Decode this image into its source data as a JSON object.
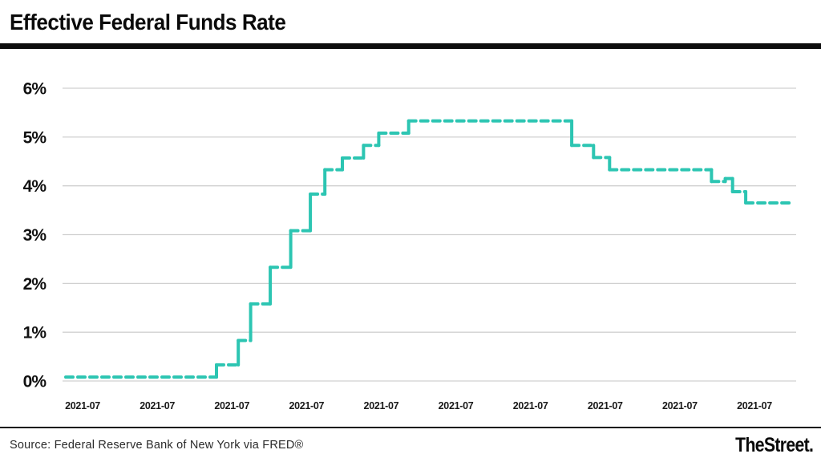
{
  "header": {
    "title": "Effective Federal Funds Rate"
  },
  "chart_data": {
    "type": "line",
    "subtype": "step",
    "title": "Effective Federal Funds Rate",
    "xlabel": "",
    "ylabel": "",
    "unit": "percent",
    "ylim": [
      0,
      6
    ],
    "grid": "horizontal-only",
    "legend": "none",
    "line_color": "#2cc5b2",
    "grid_color": "#d0d0d0",
    "tick_label_color": "#1a1a1a",
    "line_style": "dashed-step",
    "y_tick_labels": [
      "0%",
      "1%",
      "2%",
      "3%",
      "4%",
      "5%",
      "6%"
    ],
    "x_tick_labels": [
      "2021-07",
      "2021-07",
      "2021-07",
      "2021-07",
      "2021-07",
      "2021-07",
      "2021-07",
      "2021-07",
      "2021-07",
      "2021-07"
    ],
    "series_name": "Effective Federal Funds Rate (%)",
    "steps": [
      {
        "rate": 0.08,
        "start": 0.0,
        "end": 0.207
      },
      {
        "rate": 0.33,
        "start": 0.207,
        "end": 0.237
      },
      {
        "rate": 0.83,
        "start": 0.237,
        "end": 0.254
      },
      {
        "rate": 1.58,
        "start": 0.254,
        "end": 0.281
      },
      {
        "rate": 2.33,
        "start": 0.281,
        "end": 0.309
      },
      {
        "rate": 3.08,
        "start": 0.309,
        "end": 0.336
      },
      {
        "rate": 3.83,
        "start": 0.336,
        "end": 0.356
      },
      {
        "rate": 4.33,
        "start": 0.356,
        "end": 0.38
      },
      {
        "rate": 4.57,
        "start": 0.38,
        "end": 0.409
      },
      {
        "rate": 4.83,
        "start": 0.409,
        "end": 0.43
      },
      {
        "rate": 5.08,
        "start": 0.43,
        "end": 0.471
      },
      {
        "rate": 5.33,
        "start": 0.471,
        "end": 0.695
      },
      {
        "rate": 4.83,
        "start": 0.695,
        "end": 0.725
      },
      {
        "rate": 4.58,
        "start": 0.725,
        "end": 0.747
      },
      {
        "rate": 4.33,
        "start": 0.747,
        "end": 0.887
      },
      {
        "rate": 4.09,
        "start": 0.887,
        "end": 0.906
      },
      {
        "rate": 4.15,
        "start": 0.906,
        "end": 0.916
      },
      {
        "rate": 3.88,
        "start": 0.916,
        "end": 0.934
      },
      {
        "rate": 3.65,
        "start": 0.934,
        "end": 1.0
      }
    ]
  },
  "footer": {
    "source": "Source: Federal Reserve Bank of New York via FRED®",
    "brand": "TheStreet."
  }
}
